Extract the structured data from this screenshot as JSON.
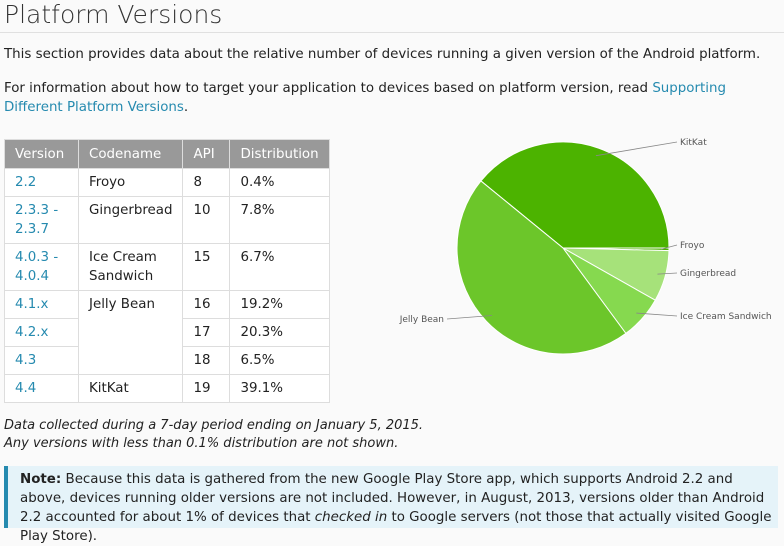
{
  "page": {
    "title": "Platform Versions",
    "intro": "This section provides data about the relative number of devices running a given version of the Android platform.",
    "intro2_prefix": "For information about how to target your application to devices based on platform version, read ",
    "intro2_link": "Supporting Different Platform Versions",
    "intro2_suffix": "."
  },
  "table": {
    "headers": [
      "Version",
      "Codename",
      "API",
      "Distribution"
    ],
    "rows": [
      {
        "version": "2.2",
        "codename": "Froyo",
        "api": "8",
        "distribution": "0.4%"
      },
      {
        "version": "2.3.3 - 2.3.7",
        "codename": "Gingerbread",
        "api": "10",
        "distribution": "7.8%"
      },
      {
        "version": "4.0.3 - 4.0.4",
        "codename": "Ice Cream Sandwich",
        "api": "15",
        "distribution": "6.7%"
      },
      {
        "version": "4.1.x",
        "codename": "Jelly Bean",
        "api": "16",
        "distribution": "19.2%"
      },
      {
        "version": "4.2.x",
        "codename": "",
        "api": "17",
        "distribution": "20.3%"
      },
      {
        "version": "4.3",
        "codename": "",
        "api": "18",
        "distribution": "6.5%"
      },
      {
        "version": "4.4",
        "codename": "KitKat",
        "api": "19",
        "distribution": "39.1%"
      }
    ]
  },
  "chart_data": {
    "type": "pie",
    "slices": [
      {
        "label": "KitKat",
        "value": 39.1,
        "color": "#4cb300"
      },
      {
        "label": "Froyo",
        "value": 0.4,
        "color": "#4cb300"
      },
      {
        "label": "Gingerbread",
        "value": 7.8,
        "color": "#a6e27a"
      },
      {
        "label": "Ice Cream Sandwich",
        "value": 6.7,
        "color": "#86d94f"
      },
      {
        "label": "Jelly Bean",
        "value": 46.0,
        "color": "#6cc62a"
      }
    ]
  },
  "footnote": {
    "line1": "Data collected during a 7-day period ending on January 5, 2015.",
    "line2": "Any versions with less than 0.1% distribution are not shown."
  },
  "note": {
    "label": "Note:",
    "part1": " Because this data is gathered from the new Google Play Store app, which supports Android 2.2 and above, devices running older versions are not included. However, in August, 2013, versions older than Android 2.2 accounted for about 1% of devices that ",
    "emphasis": "checked in",
    "part2": " to Google servers (not those that actually visited Google Play Store)."
  }
}
